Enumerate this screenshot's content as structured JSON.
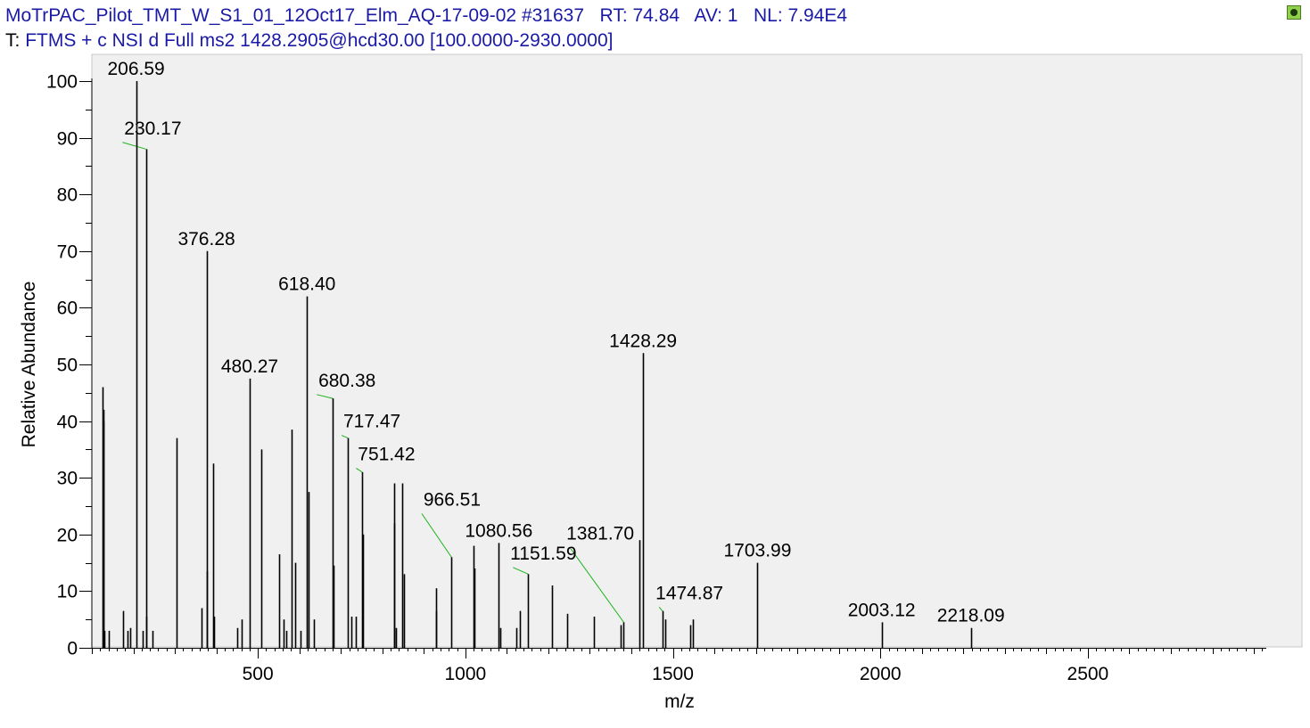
{
  "header": {
    "file": "MoTrPAC_Pilot_TMT_W_S1_01_12Oct17_Elm_AQ-17-09-02",
    "scan": "#31637",
    "rt_label": "RT:",
    "rt_value": "74.84",
    "av_label": "AV:",
    "av_value": "1",
    "nl_label": "NL:",
    "nl_value": "7.94E4",
    "filter_label": "T:",
    "filter_value": "FTMS + c NSI d Full ms2 1428.2905@hcd30.00 [100.0000-2930.0000]"
  },
  "colors": {
    "plot_background": "#f0f0f0",
    "peak": "#000000",
    "leader_line": "#18b418",
    "header_text": "#1a1aa6"
  },
  "icons": {
    "corner": "status-icon"
  },
  "chart_data": {
    "type": "bar",
    "xlabel": "m/z",
    "ylabel": "Relative Abundance",
    "xlim": [
      100,
      2930
    ],
    "ylim": [
      0,
      100
    ],
    "x_ticks": [
      500,
      1000,
      1500,
      2000,
      2500
    ],
    "y_ticks": [
      0,
      10,
      20,
      30,
      40,
      50,
      60,
      70,
      80,
      90,
      100
    ],
    "grid": false,
    "peaks": [
      {
        "mz": 126.1,
        "abundance": 46
      },
      {
        "mz": 127.1,
        "abundance": 42
      },
      {
        "mz": 128.1,
        "abundance": 40
      },
      {
        "mz": 131.1,
        "abundance": 3
      },
      {
        "mz": 141.1,
        "abundance": 3
      },
      {
        "mz": 175.1,
        "abundance": 6.5
      },
      {
        "mz": 186.1,
        "abundance": 3
      },
      {
        "mz": 192.1,
        "abundance": 3.5
      },
      {
        "mz": 206.59,
        "abundance": 100,
        "label": "206.59"
      },
      {
        "mz": 222.1,
        "abundance": 3
      },
      {
        "mz": 230.17,
        "abundance": 88,
        "label": "230.17"
      },
      {
        "mz": 232.1,
        "abundance": 5.5
      },
      {
        "mz": 245.1,
        "abundance": 3
      },
      {
        "mz": 304.2,
        "abundance": 37
      },
      {
        "mz": 364.2,
        "abundance": 7
      },
      {
        "mz": 376.28,
        "abundance": 70,
        "label": "376.28"
      },
      {
        "mz": 378.2,
        "abundance": 13.5
      },
      {
        "mz": 393.2,
        "abundance": 32.5
      },
      {
        "mz": 394.2,
        "abundance": 5.5
      },
      {
        "mz": 451.2,
        "abundance": 3.5
      },
      {
        "mz": 460.2,
        "abundance": 5
      },
      {
        "mz": 480.27,
        "abundance": 47.5,
        "label": "480.27"
      },
      {
        "mz": 507.3,
        "abundance": 35
      },
      {
        "mz": 551.3,
        "abundance": 16.5
      },
      {
        "mz": 561.3,
        "abundance": 5
      },
      {
        "mz": 569.3,
        "abundance": 3
      },
      {
        "mz": 580.3,
        "abundance": 38.5
      },
      {
        "mz": 590.3,
        "abundance": 15
      },
      {
        "mz": 602.3,
        "abundance": 3
      },
      {
        "mz": 618.4,
        "abundance": 62,
        "label": "618.40"
      },
      {
        "mz": 621.3,
        "abundance": 27.5
      },
      {
        "mz": 635.3,
        "abundance": 5
      },
      {
        "mz": 680.38,
        "abundance": 44,
        "label": "680.38"
      },
      {
        "mz": 682.3,
        "abundance": 14.5
      },
      {
        "mz": 717.47,
        "abundance": 37,
        "label": "717.47"
      },
      {
        "mz": 724.4,
        "abundance": 5.5
      },
      {
        "mz": 735.4,
        "abundance": 5.5
      },
      {
        "mz": 751.42,
        "abundance": 31,
        "label": "751.42"
      },
      {
        "mz": 753.4,
        "abundance": 20
      },
      {
        "mz": 827.4,
        "abundance": 29
      },
      {
        "mz": 829.4,
        "abundance": 22
      },
      {
        "mz": 832.4,
        "abundance": 3.5
      },
      {
        "mz": 848.4,
        "abundance": 29
      },
      {
        "mz": 851.4,
        "abundance": 13
      },
      {
        "mz": 928.5,
        "abundance": 10.5
      },
      {
        "mz": 930.5,
        "abundance": 6.5
      },
      {
        "mz": 966.51,
        "abundance": 16,
        "label": "966.51"
      },
      {
        "mz": 1020.5,
        "abundance": 18
      },
      {
        "mz": 1022.5,
        "abundance": 14
      },
      {
        "mz": 1080.56,
        "abundance": 18.5,
        "label": "1080.56"
      },
      {
        "mz": 1083.5,
        "abundance": 3.5
      },
      {
        "mz": 1123.6,
        "abundance": 3.5
      },
      {
        "mz": 1130.6,
        "abundance": 6.5
      },
      {
        "mz": 1151.59,
        "abundance": 13,
        "label": "1151.59"
      },
      {
        "mz": 1208.6,
        "abundance": 11
      },
      {
        "mz": 1245.6,
        "abundance": 6
      },
      {
        "mz": 1310.7,
        "abundance": 5.5
      },
      {
        "mz": 1374.7,
        "abundance": 4
      },
      {
        "mz": 1381.7,
        "abundance": 4.5,
        "label": "1381.70"
      },
      {
        "mz": 1419.7,
        "abundance": 19
      },
      {
        "mz": 1428.29,
        "abundance": 52,
        "label": "1428.29"
      },
      {
        "mz": 1474.87,
        "abundance": 6.5,
        "label": "1474.87"
      },
      {
        "mz": 1480.8,
        "abundance": 5
      },
      {
        "mz": 1542.8,
        "abundance": 4
      },
      {
        "mz": 1547.8,
        "abundance": 5
      },
      {
        "mz": 1703.99,
        "abundance": 15,
        "label": "1703.99"
      },
      {
        "mz": 2003.12,
        "abundance": 4.5,
        "label": "2003.12"
      },
      {
        "mz": 2218.09,
        "abundance": 3.5,
        "label": "2218.09"
      }
    ],
    "label_offsets": {
      "230.17": {
        "mz": 247,
        "abundance": 89.5
      },
      "680.38": {
        "mz": 715,
        "abundance": 45
      },
      "717.47": {
        "mz": 775,
        "abundance": 37.8
      },
      "751.42": {
        "mz": 810,
        "abundance": 32
      },
      "966.51": {
        "mz": 968,
        "abundance": 24
      },
      "1151.59": {
        "mz": 1188,
        "abundance": 14.5
      },
      "1381.70": {
        "mz": 1325,
        "abundance": 18
      },
      "1474.87": {
        "mz": 1540,
        "abundance": 7.5
      }
    }
  }
}
